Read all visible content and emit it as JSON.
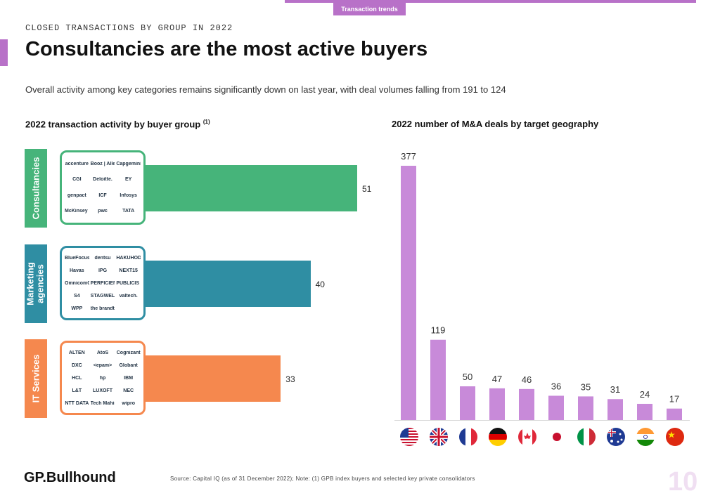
{
  "header": {
    "tag": "Transaction trends",
    "kicker": "CLOSED TRANSACTIONS BY GROUP IN 2022",
    "title": "Consultancies are the most active buyers",
    "subtitle": "Overall activity among key categories remains significantly down on last year, with deal volumes falling from 191 to 124"
  },
  "left_section": {
    "title": "2022 transaction activity by buyer group",
    "footnote_marker": "(1)",
    "groups": [
      {
        "label": "Consultancies",
        "value": 51,
        "color": "#46b47a",
        "logos": [
          "accenture",
          "Booz | Allen | Hamilton",
          "Capgemini",
          "CGI",
          "Deloitte.",
          "EY",
          "genpact",
          "ICF",
          "Infosys",
          "McKinsey & Company",
          "pwc",
          "TATA"
        ]
      },
      {
        "label": "Marketing agencies",
        "value": 40,
        "color": "#2f8ea3",
        "logos": [
          "BlueFocus",
          "dentsu",
          "HAKUHODO",
          "Havas",
          "IPG",
          "NEXT15",
          "OmnicomGroup",
          "PERFICIENT",
          "PUBLICIS GROUPE",
          "S4",
          "STAGWELL",
          "valtech.",
          "WPP",
          "the brandtech group"
        ]
      },
      {
        "label": "IT Services",
        "value": 33,
        "color": "#f5884e",
        "logos": [
          "ALTEN",
          "AtoS",
          "Cognizant",
          "DXC",
          "<epam>",
          "Globant",
          "HCL",
          "hp",
          "IBM",
          "L&T",
          "LUXOFT",
          "NEC",
          "NTT DATA",
          "Tech Mahindra",
          "wipro"
        ]
      }
    ]
  },
  "chart_data": {
    "type": "bar",
    "title": "2022 number of M&A deals by target geography",
    "categories": [
      "United States",
      "United Kingdom",
      "France",
      "Germany",
      "Canada",
      "Japan",
      "Italy",
      "Australia",
      "India",
      "China"
    ],
    "values": [
      377,
      119,
      50,
      47,
      46,
      36,
      35,
      31,
      24,
      17
    ],
    "color": "#c88ad9",
    "xlabel": "",
    "ylabel": "",
    "ylim": [
      0,
      377
    ]
  },
  "footer": {
    "brand": "GP.Bullhound",
    "source": "Source: Capital IQ (as of 31 December 2022); Note: (1) GPB index buyers and selected key private consolidators",
    "page": "10"
  }
}
